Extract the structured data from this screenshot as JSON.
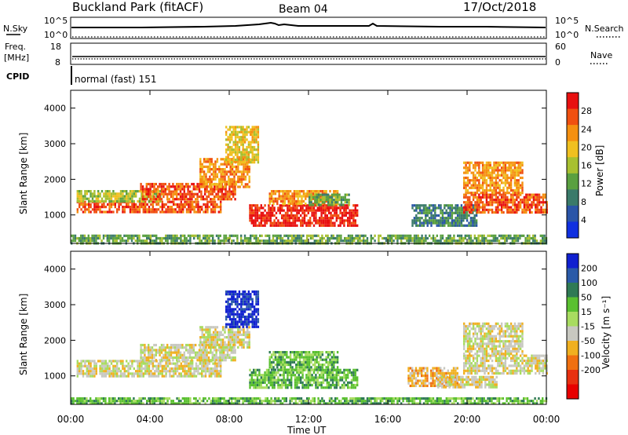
{
  "header": {
    "site": "Buckland Park (fitACF)",
    "beam": "Beam 04",
    "date": "17/Oct/2018"
  },
  "noise_panel": {
    "left_label": "N.Sky",
    "right_label": "N.Search",
    "left_ticks": [
      "10^5",
      "10^0"
    ],
    "right_ticks": [
      "10^5",
      "10^0"
    ]
  },
  "freq_panel": {
    "left_label_line1": "Freq.",
    "left_label_line2": "[MHz]",
    "right_label": "Nave",
    "left_ticks": [
      "18",
      "8"
    ],
    "right_ticks": [
      "60",
      "0"
    ]
  },
  "cpid_panel": {
    "label": "CPID",
    "text": "normal (fast) 151"
  },
  "power_panel": {
    "ylabel": "Slant Range [km]",
    "colorbar_label": "Power [dB]"
  },
  "velocity_panel": {
    "ylabel": "Slant Range [km]",
    "colorbar_label": "Velocity [m s⁻¹]"
  },
  "x_axis": {
    "label": "Time UT",
    "ticks": [
      "00:00",
      "04:00",
      "08:00",
      "12:00",
      "16:00",
      "20:00",
      "00:00"
    ]
  },
  "chart_data": [
    {
      "type": "heatmap",
      "name": "power",
      "xlabel": "Time UT",
      "ylabel": "Slant Range [km]",
      "x_range_hours": [
        0,
        24
      ],
      "ylim": [
        200,
        4500
      ],
      "yticks": [
        1000,
        2000,
        3000,
        4000
      ],
      "colorbar": {
        "label": "Power [dB]",
        "ticks": [
          4,
          8,
          12,
          16,
          20,
          24,
          28
        ],
        "range": [
          0,
          32
        ],
        "colors": [
          "#1030e0",
          "#2a55a8",
          "#3a7a6a",
          "#5aa040",
          "#a8c030",
          "#f0c020",
          "#f59010",
          "#f05010",
          "#e81010"
        ]
      },
      "regions": [
        {
          "t0": 0.0,
          "t1": 24.0,
          "r0": 220,
          "r1": 450,
          "level": 3
        },
        {
          "t0": 0.3,
          "t1": 7.6,
          "r0": 1050,
          "r1": 1400,
          "level": 7
        },
        {
          "t0": 0.3,
          "t1": 4.5,
          "r0": 1400,
          "r1": 1700,
          "level": 4
        },
        {
          "t0": 3.5,
          "t1": 8.3,
          "r0": 1450,
          "r1": 1900,
          "level": 7
        },
        {
          "t0": 6.5,
          "t1": 9.0,
          "r0": 1800,
          "r1": 2600,
          "level": 6
        },
        {
          "t0": 7.8,
          "t1": 9.5,
          "r0": 2500,
          "r1": 3500,
          "level": 5
        },
        {
          "t0": 9.0,
          "t1": 14.5,
          "r0": 700,
          "r1": 1300,
          "level": 8
        },
        {
          "t0": 10.0,
          "t1": 13.5,
          "r0": 1300,
          "r1": 1700,
          "level": 6
        },
        {
          "t0": 12.0,
          "t1": 14.0,
          "r0": 1300,
          "r1": 1600,
          "level": 3
        },
        {
          "t0": 17.2,
          "t1": 20.5,
          "r0": 700,
          "r1": 1300,
          "level": 2
        },
        {
          "t0": 19.8,
          "t1": 24.0,
          "r0": 1100,
          "r1": 1600,
          "level": 7
        },
        {
          "t0": 19.8,
          "t1": 22.8,
          "r0": 1600,
          "r1": 2500,
          "level": 6
        }
      ]
    },
    {
      "type": "heatmap",
      "name": "velocity",
      "xlabel": "Time UT",
      "ylabel": "Slant Range [km]",
      "x_range_hours": [
        0,
        24
      ],
      "ylim": [
        200,
        4500
      ],
      "yticks": [
        1000,
        2000,
        3000,
        4000
      ],
      "colorbar": {
        "label": "Velocity [m s⁻¹]",
        "ticks": [
          200,
          100,
          50,
          15,
          -15,
          -50,
          -100,
          -200
        ],
        "colors": [
          "#1020d0",
          "#2a5aa8",
          "#2f7a55",
          "#5ac030",
          "#a8dc60",
          "#c8c8c0",
          "#f0b020",
          "#f07010",
          "#e83010",
          "#e80000"
        ]
      },
      "regions": [
        {
          "t0": 0.0,
          "t1": 24.0,
          "r0": 220,
          "r1": 400,
          "level": 3
        },
        {
          "t0": 0.3,
          "t1": 7.6,
          "r0": 1000,
          "r1": 1450,
          "level": 5
        },
        {
          "t0": 3.5,
          "t1": 8.3,
          "r0": 1450,
          "r1": 1900,
          "level": 5
        },
        {
          "t0": 6.5,
          "t1": 9.0,
          "r0": 1800,
          "r1": 2400,
          "level": 5
        },
        {
          "t0": 7.8,
          "t1": 9.5,
          "r0": 2400,
          "r1": 3400,
          "level": 0
        },
        {
          "t0": 9.0,
          "t1": 14.5,
          "r0": 700,
          "r1": 1200,
          "level": 3
        },
        {
          "t0": 10.0,
          "t1": 13.5,
          "r0": 1200,
          "r1": 1700,
          "level": 3
        },
        {
          "t0": 17.0,
          "t1": 19.5,
          "r0": 700,
          "r1": 1250,
          "level": 6
        },
        {
          "t0": 18.5,
          "t1": 21.5,
          "r0": 700,
          "r1": 1000,
          "level": 5
        },
        {
          "t0": 19.8,
          "t1": 24.0,
          "r0": 1100,
          "r1": 1600,
          "level": 5
        },
        {
          "t0": 19.8,
          "t1": 22.8,
          "r0": 1600,
          "r1": 2500,
          "level": 5
        }
      ]
    }
  ]
}
